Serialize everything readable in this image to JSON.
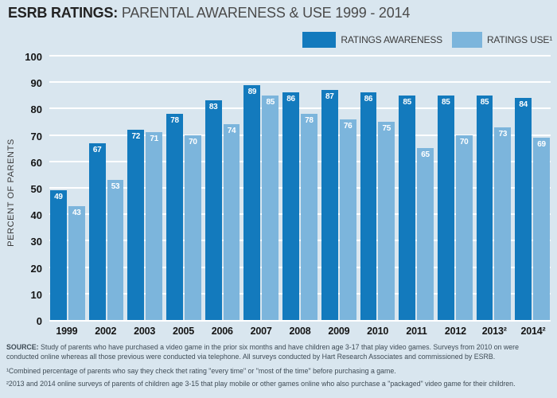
{
  "header": {
    "title_bold": "ESRB RATINGS:",
    "title_rest": " PARENTAL AWARENESS & USE  1999 - 2014"
  },
  "legend": {
    "awareness_label": "RATINGS AWARENESS",
    "use_label": "RATINGS USE¹"
  },
  "colors": {
    "background": "#d9e6ef",
    "awareness_bar": "#137abd",
    "use_bar": "#7cb5dc",
    "gridline": "#ffffff",
    "bar_value_text": "#ffffff",
    "axis_text": "#141414"
  },
  "chart_data": {
    "type": "bar",
    "title": "ESRB RATINGS: PARENTAL AWARENESS & USE 1999 - 2014",
    "categories": [
      "1999",
      "2002",
      "2003",
      "2005",
      "2006",
      "2007",
      "2008",
      "2009",
      "2010",
      "2011",
      "2012",
      "2013²",
      "2014²"
    ],
    "series": [
      {
        "name": "RATINGS AWARENESS",
        "color": "#137abd",
        "values": [
          49,
          67,
          72,
          78,
          83,
          89,
          86,
          87,
          86,
          85,
          85,
          85,
          84
        ]
      },
      {
        "name": "RATINGS USE",
        "color": "#7cb5dc",
        "values": [
          43,
          53,
          71,
          70,
          74,
          85,
          78,
          76,
          75,
          65,
          70,
          73,
          69
        ]
      }
    ],
    "xlabel": "",
    "ylabel": "PERCENT OF PARENTS",
    "ylim": [
      0,
      100
    ],
    "yticks": [
      0,
      10,
      20,
      30,
      40,
      50,
      60,
      70,
      80,
      90,
      100
    ],
    "grid": true,
    "legend_position": "top-right",
    "bar_value_labels": true
  },
  "footer": {
    "source_bold": "SOURCE:",
    "source_text": " Study of parents who have purchased a video game in the prior six months and have children age 3-17 that play video games. Surveys from 2010 on were conducted online whereas all those previous were conducted via telephone. All surveys conducted by Hart Research Associates and commissioned by ESRB.",
    "footnote1": "¹Combined percentage of parents who say they check thet rating \"every time\" or \"most of the time\" before purchasing a game.",
    "footnote2": "²2013 and 2014 online surveys of parents of children age 3-15 that play mobile or other games online who also purchase a \"packaged\" video game for their children."
  }
}
